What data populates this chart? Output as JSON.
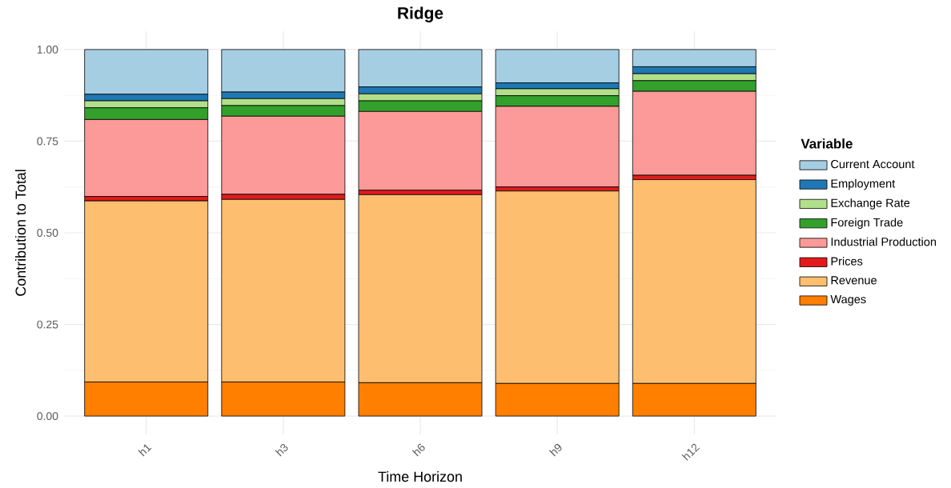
{
  "chart_data": {
    "type": "bar",
    "title": "Ridge",
    "xlabel": "Time Horizon",
    "ylabel": "Contribution to Total",
    "legend_title": "Variable",
    "categories": [
      "h1",
      "h3",
      "h6",
      "h9",
      "h12"
    ],
    "stacked": true,
    "grid": true,
    "legend": "right",
    "ylim": [
      -0.05,
      1.05
    ],
    "yticks": [
      {
        "value": 0,
        "label": "0.00"
      },
      {
        "value": 0.25,
        "label": "0.25"
      },
      {
        "value": 0.5,
        "label": "0.50"
      },
      {
        "value": 0.75,
        "label": "0.75"
      },
      {
        "value": 1,
        "label": "1.00"
      }
    ],
    "series": [
      {
        "name": "Wages",
        "color": "#ff7f00",
        "values": [
          0.093,
          0.093,
          0.091,
          0.089,
          0.089
        ]
      },
      {
        "name": "Revenue",
        "color": "#fdbf6f",
        "values": [
          0.494,
          0.498,
          0.513,
          0.525,
          0.556
        ]
      },
      {
        "name": "Prices",
        "color": "#e31a1c",
        "values": [
          0.012,
          0.014,
          0.012,
          0.011,
          0.012
        ]
      },
      {
        "name": "Industrial Production",
        "color": "#fb9a99",
        "values": [
          0.21,
          0.213,
          0.215,
          0.22,
          0.229
        ]
      },
      {
        "name": "Foreign Trade",
        "color": "#33a02c",
        "values": [
          0.032,
          0.029,
          0.029,
          0.029,
          0.029
        ]
      },
      {
        "name": "Exchange Rate",
        "color": "#b2df8a",
        "values": [
          0.019,
          0.019,
          0.019,
          0.019,
          0.019
        ]
      },
      {
        "name": "Employment",
        "color": "#1f78b4",
        "values": [
          0.018,
          0.018,
          0.019,
          0.016,
          0.019
        ]
      },
      {
        "name": "Current Account",
        "color": "#a6cee3",
        "values": [
          0.122,
          0.116,
          0.102,
          0.091,
          0.047
        ]
      }
    ]
  }
}
